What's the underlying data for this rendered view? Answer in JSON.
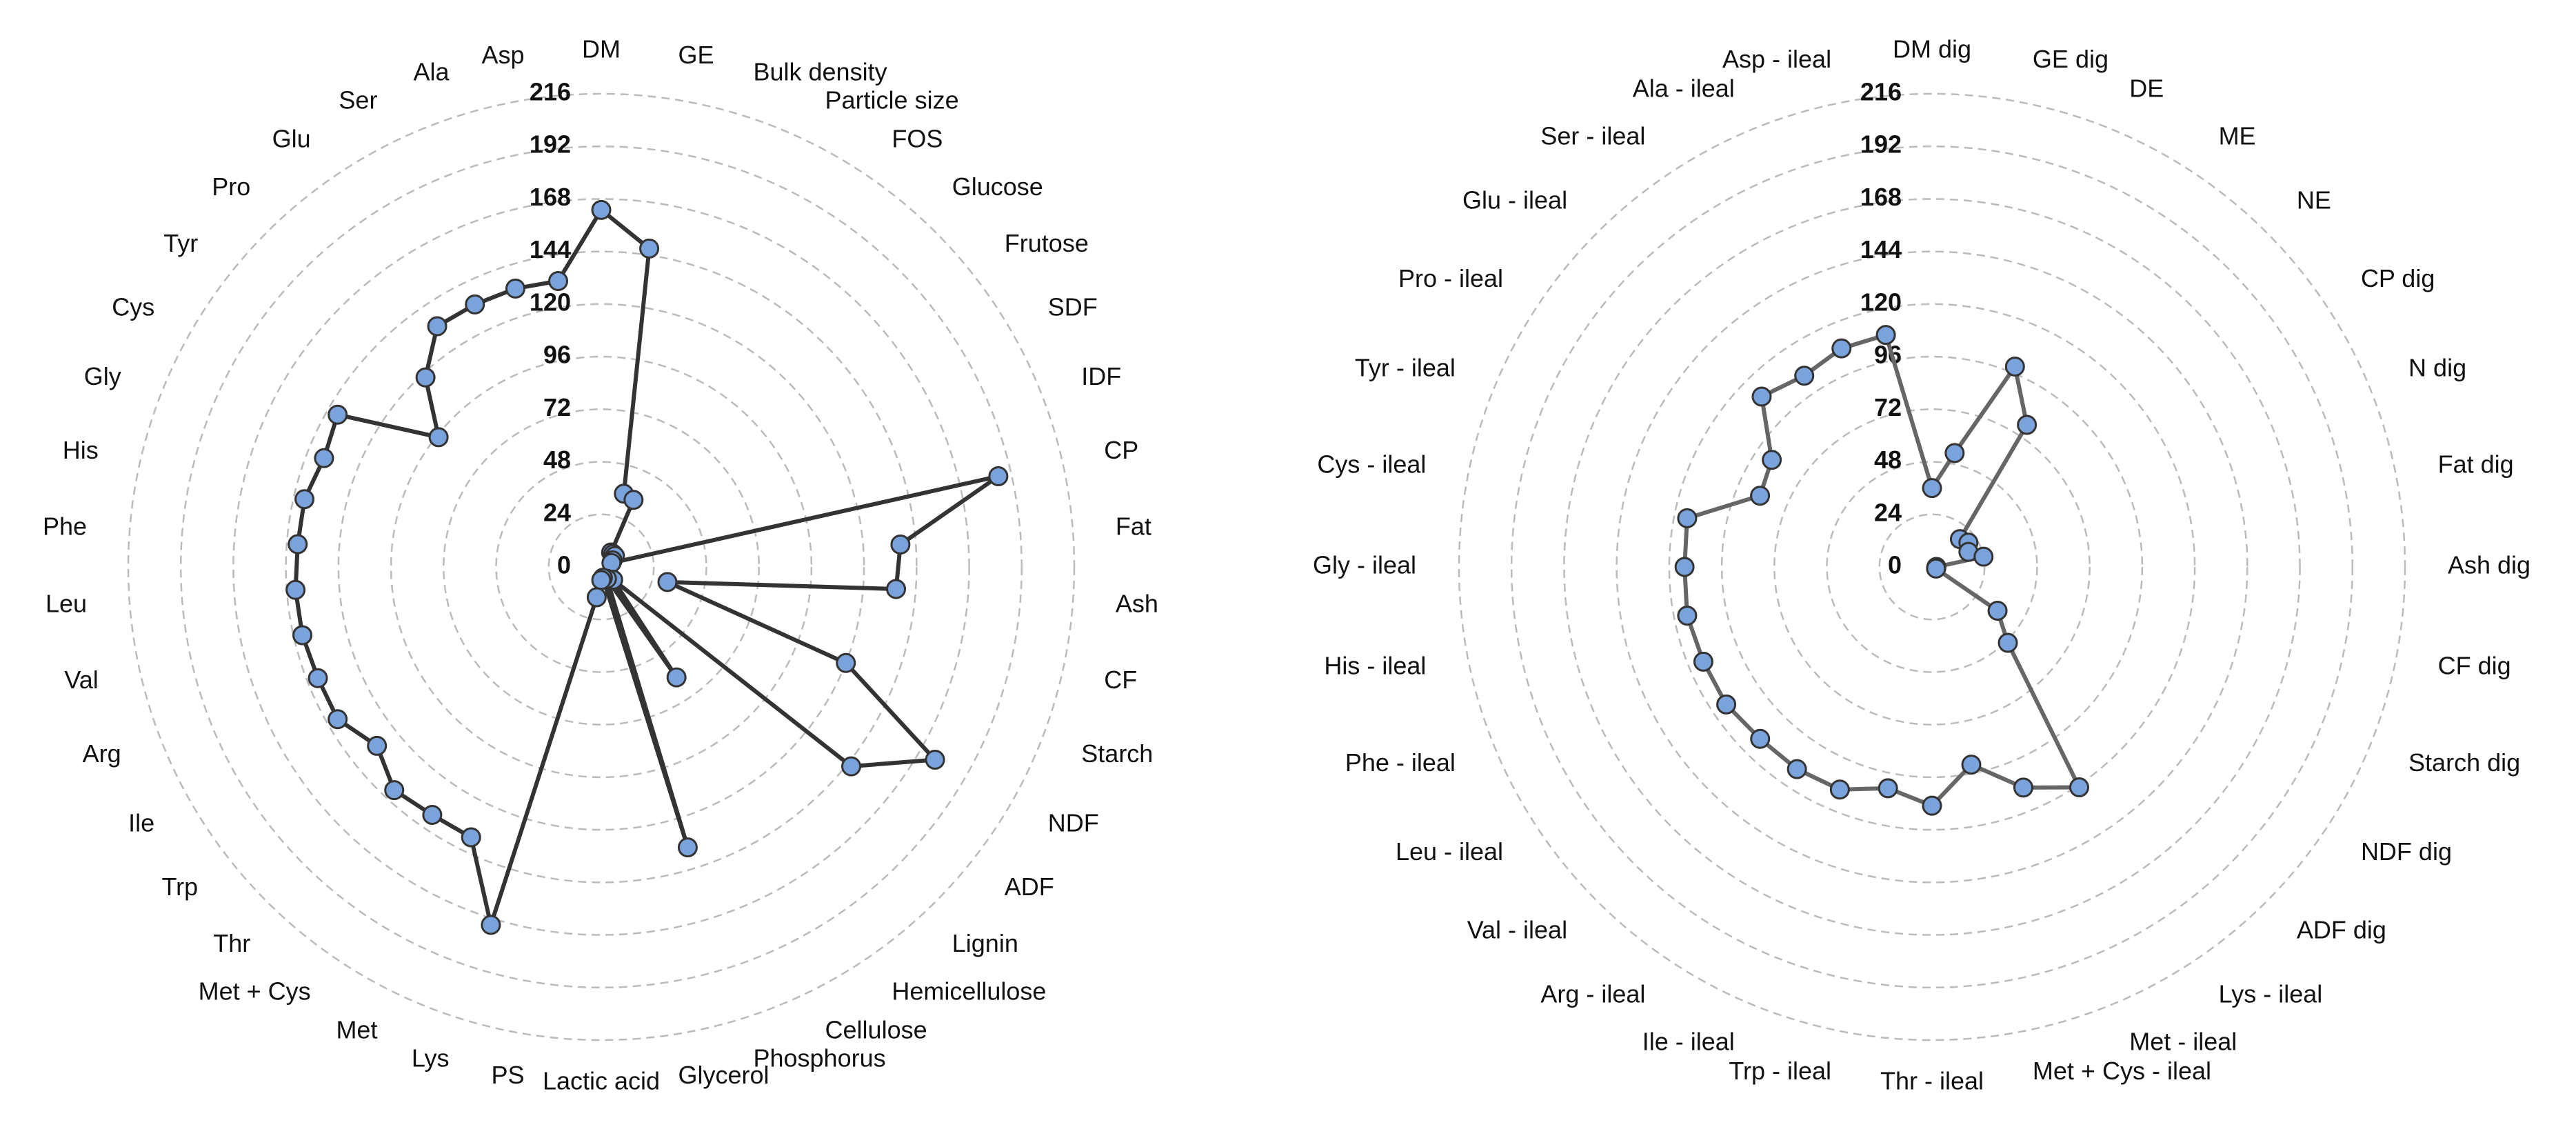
{
  "chart_data": [
    {
      "type": "radar",
      "categories": [
        "DM",
        "GE",
        "Bulk density",
        "Particle size",
        "FOS",
        "Glucose",
        "Frutose",
        "SDF",
        "IDF",
        "CP",
        "Fat",
        "Ash",
        "CF",
        "Starch",
        "NDF",
        "ADF",
        "Lignin",
        "Hemicellulose",
        "Cellulose",
        "Phosphorus",
        "Glycerol",
        "Lactic acid",
        "PS",
        "Lys",
        "Met",
        "Met + Cys",
        "Thr",
        "Trp",
        "Ile",
        "Arg",
        "Val",
        "Leu",
        "Phe",
        "His",
        "Gly",
        "Cys",
        "Tyr",
        "Pro",
        "Glu",
        "Ser",
        "Ala",
        "Asp"
      ],
      "values": [
        163,
        147,
        35,
        34,
        8,
        8,
        8,
        6,
        5,
        186,
        137,
        135,
        31,
        120,
        176,
        146,
        8,
        61,
        6,
        134,
        5,
        6,
        14,
        171,
        137,
        137,
        139,
        131,
        139,
        139,
        140,
        140,
        139,
        139,
        136,
        139,
        95,
        118,
        133,
        133,
        133,
        132
      ],
      "color": "#7ba3db",
      "line_color": "#333333",
      "ylim": [
        0,
        216
      ],
      "yticks": [
        0,
        24,
        48,
        72,
        96,
        120,
        144,
        168,
        192,
        216
      ],
      "grid": true
    },
    {
      "type": "radar",
      "categories": [
        "DM dig",
        "GE dig",
        "DE",
        "ME",
        "NE",
        "CP dig",
        "N dig",
        "Fat dig",
        "Ash dig",
        "CF dig",
        "Starch dig",
        "NDF dig",
        "ADF dig",
        "Lys - ileal",
        "Met - ileal",
        "Met + Cys - ileal",
        "Thr - ileal",
        "Trp - ileal",
        "Ile - ileal",
        "Arg - ileal",
        "Val - ileal",
        "Leu - ileal",
        "Phe - ileal",
        "His - ileal",
        "Gly - ileal",
        "Cys - ileal",
        "Tyr - ileal",
        "Pro - ileal",
        "Glu - ileal",
        "Ser - ileal",
        "Ala - ileal",
        "Asp - ileal"
      ],
      "values": [
        36,
        53,
        99,
        78,
        18,
        20,
        18,
        24,
        2,
        2,
        2,
        36,
        49,
        121,
        109,
        92,
        109,
        103,
        110,
        111,
        111,
        113,
        113,
        114,
        113,
        114,
        85,
        88,
        110,
        105,
        108,
        108
      ],
      "color": "#7ba3db",
      "line_color": "#666666",
      "ylim": [
        0,
        216
      ],
      "yticks": [
        0,
        24,
        48,
        72,
        96,
        120,
        144,
        168,
        192,
        216
      ],
      "grid": true
    }
  ]
}
